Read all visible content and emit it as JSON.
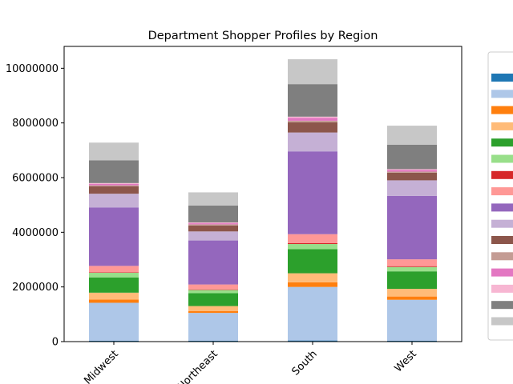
{
  "chart_data": {
    "type": "bar",
    "stacked": true,
    "title": "Department Shopper Profiles by Region",
    "xlabel": "",
    "ylabel": "",
    "categories": [
      "Midwest",
      "Northeast",
      "South",
      "West"
    ],
    "ylim": [
      0,
      10800000
    ],
    "yticks": [
      0,
      2000000,
      4000000,
      6000000,
      8000000,
      10000000
    ],
    "ytick_labels": [
      "0",
      "2000000",
      "4000000",
      "6000000",
      "8000000",
      "10000000"
    ],
    "legend_position": "right (outside plot, entry labels cut off)",
    "series": [
      {
        "color": "#1f77b4",
        "values": [
          30000,
          30000,
          40000,
          30000
        ]
      },
      {
        "color": "#aec7e8",
        "values": [
          1390000,
          1020000,
          1960000,
          1500000
        ]
      },
      {
        "color": "#ff7f0e",
        "values": [
          120000,
          70000,
          170000,
          120000
        ]
      },
      {
        "color": "#ffbb78",
        "values": [
          250000,
          180000,
          330000,
          280000
        ]
      },
      {
        "color": "#2ca02c",
        "values": [
          560000,
          470000,
          880000,
          640000
        ]
      },
      {
        "color": "#98df8a",
        "values": [
          170000,
          120000,
          190000,
          160000
        ]
      },
      {
        "color": "#d62728",
        "values": [
          20000,
          20000,
          30000,
          30000
        ]
      },
      {
        "color": "#ff9896",
        "values": [
          230000,
          180000,
          330000,
          250000
        ]
      },
      {
        "color": "#9467bd",
        "values": [
          2140000,
          1610000,
          3030000,
          2320000
        ]
      },
      {
        "color": "#c5b0d5",
        "values": [
          500000,
          330000,
          690000,
          570000
        ]
      },
      {
        "color": "#8c564b",
        "values": [
          270000,
          220000,
          370000,
          280000
        ]
      },
      {
        "color": "#c49c94",
        "values": [
          40000,
          40000,
          60000,
          40000
        ]
      },
      {
        "color": "#e377c2",
        "values": [
          50000,
          40000,
          110000,
          60000
        ]
      },
      {
        "color": "#f7b6d2",
        "values": [
          30000,
          30000,
          40000,
          30000
        ]
      },
      {
        "color": "#7f7f7f",
        "values": [
          830000,
          620000,
          1190000,
          890000
        ]
      },
      {
        "color": "#c7c7c7",
        "values": [
          650000,
          480000,
          910000,
          700000
        ]
      }
    ]
  }
}
